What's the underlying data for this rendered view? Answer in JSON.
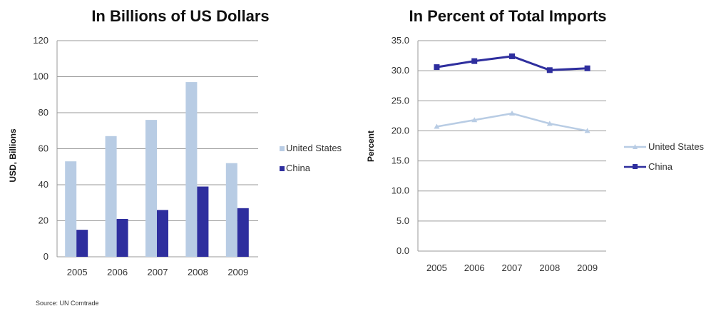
{
  "chart_data": [
    {
      "type": "bar",
      "title": "In Billions of US Dollars",
      "xlabel": "",
      "ylabel": "USD, Billions",
      "ylim": [
        0,
        120
      ],
      "yticks": [
        "0",
        "20",
        "40",
        "60",
        "80",
        "100",
        "120"
      ],
      "categories": [
        "2005",
        "2006",
        "2007",
        "2008",
        "2009"
      ],
      "series": [
        {
          "name": "United States",
          "values": [
            53,
            67,
            76,
            97,
            52
          ],
          "color": "#b8cce4"
        },
        {
          "name": "China",
          "values": [
            15,
            21,
            26,
            39,
            27
          ],
          "color": "#2e2e9e"
        }
      ],
      "grid": true,
      "legend": "right"
    },
    {
      "type": "line",
      "title": "In Percent of Total Imports",
      "xlabel": "",
      "ylabel": "Percent",
      "ylim": [
        0,
        35
      ],
      "yticks": [
        "0.0",
        "5.0",
        "10.0",
        "15.0",
        "20.0",
        "25.0",
        "30.0",
        "35.0"
      ],
      "categories": [
        "2005",
        "2006",
        "2007",
        "2008",
        "2009"
      ],
      "series": [
        {
          "name": "United States",
          "values": [
            20.7,
            21.8,
            22.9,
            21.2,
            20.0
          ],
          "color": "#b8cce4"
        },
        {
          "name": "China",
          "values": [
            30.6,
            31.6,
            32.4,
            30.1,
            30.4
          ],
          "color": "#2e2e9e"
        }
      ],
      "grid": true,
      "legend": "right"
    }
  ],
  "source": "Source: UN Comtrade"
}
